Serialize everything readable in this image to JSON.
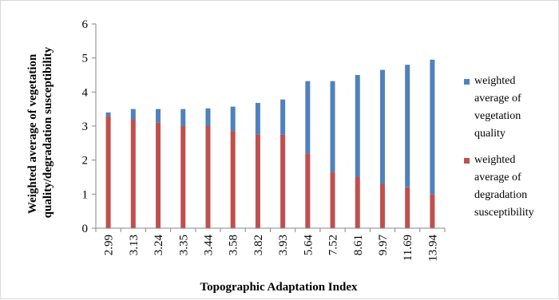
{
  "chart_data": {
    "type": "bar",
    "stacked": true,
    "categories": [
      "2.99",
      "3.13",
      "3.24",
      "3.35",
      "3.44",
      "3.58",
      "3.82",
      "3.93",
      "5.64",
      "7.52",
      "8.61",
      "9.97",
      "11.69",
      "13.94"
    ],
    "series": [
      {
        "name": "weighted average of degradation susceptibility",
        "color": "#c0504d",
        "values": [
          3.3,
          3.2,
          3.1,
          3.0,
          3.0,
          2.85,
          2.75,
          2.75,
          2.2,
          1.65,
          1.5,
          1.3,
          1.2,
          1.0
        ]
      },
      {
        "name": "weighted average of vegetation quality",
        "color": "#4f81bd",
        "values": [
          0.1,
          0.3,
          0.4,
          0.5,
          0.52,
          0.72,
          0.93,
          1.03,
          2.12,
          2.67,
          3.0,
          3.35,
          3.6,
          3.95
        ]
      }
    ],
    "legend_order": [
      1,
      0
    ],
    "legend_lines": [
      [
        "weighted",
        "average of",
        "vegetation",
        "quality"
      ],
      [
        "weighted",
        "average of",
        "degradation",
        "susceptibility"
      ]
    ],
    "xlabel": "Topographic Adaptation Index",
    "ylabel_lines": [
      "Weighted average of  vegetation",
      "quality/degradation susceptibility"
    ],
    "ylim": [
      0,
      6
    ],
    "yticks": [
      0,
      1,
      2,
      3,
      4,
      5,
      6
    ],
    "grid": false,
    "legend_position": "right"
  }
}
